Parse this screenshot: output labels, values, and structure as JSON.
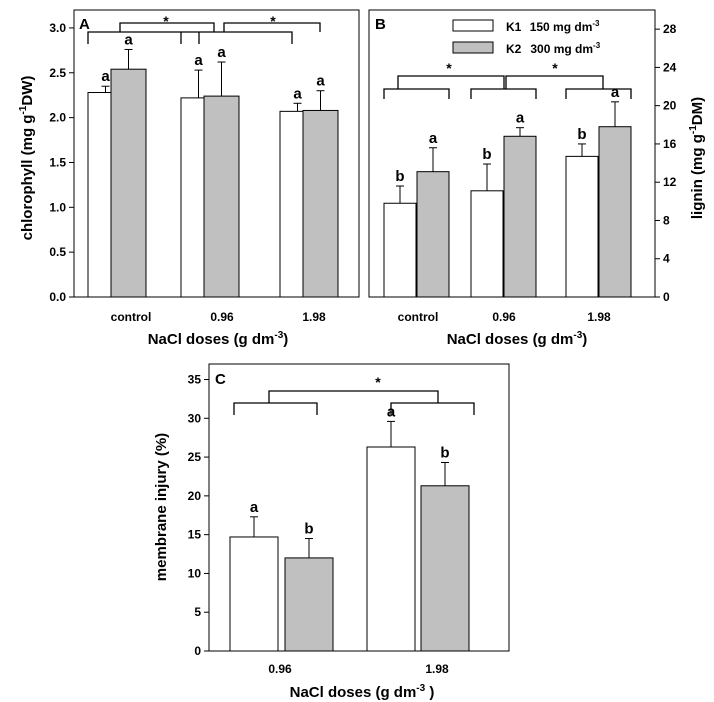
{
  "colors": {
    "k1": "#ffffff",
    "k2": "#c0c0c0",
    "axis": "#000000"
  },
  "legend": [
    {
      "key": "K1",
      "text": "150 mg dm",
      "exp": "-3"
    },
    {
      "key": "K2",
      "text": "300 mg dm",
      "exp": "-3"
    }
  ],
  "sig_mark": "*",
  "chart_data": [
    {
      "panel": "A",
      "type": "bar",
      "categories": [
        "control",
        "0.96",
        "1.98"
      ],
      "xlabel": {
        "main": "NaCl doses  (g dm",
        "exp": "-3",
        "end": ")"
      },
      "ylabel": {
        "main": "chlorophyll (mg g",
        "exp": "-1",
        "end": "DW)"
      },
      "ylim": [
        0,
        3.2
      ],
      "yticks": [
        "0.0",
        "0.5",
        "1.0",
        "1.5",
        "2.0",
        "2.5",
        "3.0"
      ],
      "series": [
        {
          "name": "K1  150 mg dm-3",
          "values": [
            2.28,
            2.22,
            2.07
          ],
          "errors": [
            0.07,
            0.31,
            0.09
          ],
          "letters": [
            "a",
            "a",
            "a"
          ]
        },
        {
          "name": "K2  300 mg dm-3",
          "values": [
            2.54,
            2.24,
            2.08
          ],
          "errors": [
            0.22,
            0.38,
            0.22
          ],
          "letters": [
            "a",
            "a",
            "a"
          ]
        }
      ]
    },
    {
      "panel": "B",
      "type": "bar",
      "categories": [
        "control",
        "0.96",
        "1.98"
      ],
      "xlabel": {
        "main": "NaCl doses  (g dm",
        "exp": "-3",
        "end": ")"
      },
      "ylabel": {
        "main": "lignin (mg g",
        "exp": "-1",
        "end": "DM)"
      },
      "ylim": [
        0,
        30
      ],
      "yticks": [
        "0",
        "4",
        "8",
        "12",
        "16",
        "20",
        "24",
        "28"
      ],
      "series": [
        {
          "name": "K1  150 mg dm-3",
          "values": [
            9.8,
            11.1,
            14.7
          ],
          "errors": [
            1.8,
            2.8,
            1.3
          ],
          "letters": [
            "b",
            "b",
            "b"
          ]
        },
        {
          "name": "K2  300 mg dm-3",
          "values": [
            13.1,
            16.8,
            17.8
          ],
          "errors": [
            2.5,
            0.9,
            2.6
          ],
          "letters": [
            "a",
            "a",
            "a"
          ]
        }
      ]
    },
    {
      "panel": "C",
      "type": "bar",
      "categories": [
        "0.96",
        "1.98"
      ],
      "xlabel": {
        "main": "NaCl doses  (g dm",
        "exp": "-3",
        "end": " )"
      },
      "ylabel": {
        "main": "membrane injury (%)",
        "exp": "",
        "end": ""
      },
      "ylim": [
        0,
        37
      ],
      "yticks": [
        "0",
        "5",
        "10",
        "15",
        "20",
        "25",
        "30",
        "35"
      ],
      "series": [
        {
          "name": "K1  150 mg dm-3",
          "values": [
            14.7,
            26.3
          ],
          "errors": [
            2.6,
            3.3
          ],
          "letters": [
            "a",
            "a"
          ]
        },
        {
          "name": "K2  300 mg dm-3",
          "values": [
            12.0,
            21.3
          ],
          "errors": [
            2.5,
            3.0
          ],
          "letters": [
            "b",
            "b"
          ]
        }
      ]
    }
  ]
}
